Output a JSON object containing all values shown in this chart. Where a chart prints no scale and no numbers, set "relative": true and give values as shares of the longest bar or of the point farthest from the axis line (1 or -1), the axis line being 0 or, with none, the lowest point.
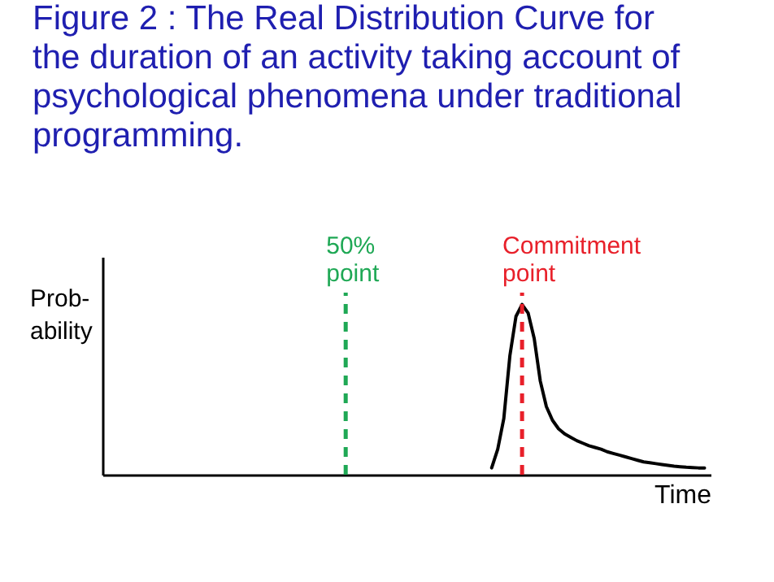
{
  "chart_data": {
    "type": "line",
    "title": "Figure 2 : The Real Distribution Curve for the duration of an activity taking account of psychological phenomena under traditional programming.",
    "xlabel": "Time",
    "ylabel": "Prob-ability",
    "relative": true,
    "categories": [
      null,
      null,
      null,
      null,
      null,
      null,
      null,
      null,
      null,
      null,
      null,
      null,
      null,
      null,
      null,
      null,
      null,
      null,
      null,
      null,
      null,
      null,
      null,
      null,
      null,
      null,
      null,
      null,
      null,
      null,
      null,
      null,
      null,
      null,
      null,
      null,
      null,
      null,
      null,
      null,
      null,
      null,
      null,
      null,
      null,
      null,
      null,
      null,
      null,
      null,
      null,
      null,
      null,
      null,
      null,
      null,
      null,
      null,
      null,
      null,
      null,
      null,
      null,
      null,
      null,
      null,
      null,
      null,
      null,
      null,
      null,
      null,
      null,
      null,
      null,
      null,
      null,
      null,
      null,
      null,
      null,
      null,
      null,
      null,
      null,
      null,
      null,
      null,
      null,
      null,
      null,
      null,
      null,
      null,
      null,
      null,
      null,
      null,
      null,
      null,
      null
    ],
    "series": [
      {
        "color": "#000000",
        "values": [
          null,
          null,
          null,
          null,
          null,
          null,
          null,
          null,
          null,
          null,
          null,
          null,
          null,
          null,
          null,
          null,
          null,
          null,
          null,
          null,
          null,
          null,
          null,
          null,
          null,
          null,
          null,
          null,
          null,
          null,
          null,
          null,
          null,
          null,
          null,
          null,
          null,
          null,
          null,
          null,
          null,
          null,
          null,
          null,
          null,
          null,
          null,
          null,
          null,
          null,
          null,
          null,
          null,
          null,
          null,
          null,
          null,
          null,
          null,
          null,
          null,
          null,
          null,
          null,
          0.04,
          0.15,
          0.33,
          0.7,
          0.93,
          1,
          0.95,
          0.8,
          0.55,
          0.4,
          0.32,
          0.27,
          0.24,
          0.22,
          0.2,
          0.185,
          0.17,
          0.16,
          0.15,
          0.135,
          0.125,
          0.115,
          0.105,
          0.095,
          0.085,
          0.075,
          0.07,
          0.065,
          0.06,
          0.055,
          0.05,
          0.047,
          0.044,
          0.042,
          0.04,
          0.04,
          null
        ]
      }
    ],
    "annotations": [
      "50% point",
      "Commitment point"
    ]
  }
}
